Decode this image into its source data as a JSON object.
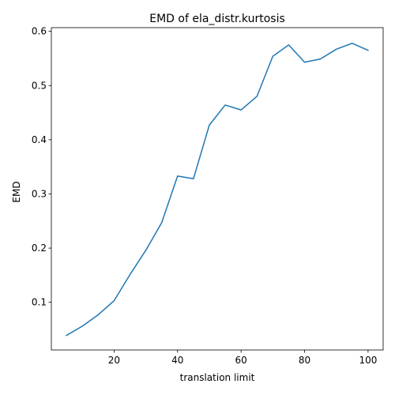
{
  "chart_data": {
    "type": "line",
    "title": "EMD of ela_distr.kurtosis",
    "xlabel": "translation limit",
    "ylabel": "EMD",
    "xlim": [
      0.25,
      104.75
    ],
    "ylim": [
      0.0121,
      0.6068
    ],
    "xticks": [
      20,
      40,
      60,
      80,
      100
    ],
    "xtick_labels": [
      "20",
      "40",
      "60",
      "80",
      "100"
    ],
    "yticks": [
      0.1,
      0.2,
      0.3,
      0.4,
      0.5,
      0.6
    ],
    "ytick_labels": [
      "0.1",
      "0.2",
      "0.3",
      "0.4",
      "0.5",
      "0.6"
    ],
    "grid": false,
    "series": [
      {
        "color": "#1f77b4",
        "x": [
          5,
          10,
          15,
          20,
          25,
          30,
          35,
          40,
          45,
          50,
          55,
          60,
          65,
          70,
          75,
          80,
          85,
          90,
          95,
          100
        ],
        "y": [
          0.039,
          0.056,
          0.077,
          0.103,
          0.151,
          0.196,
          0.247,
          0.333,
          0.328,
          0.427,
          0.464,
          0.455,
          0.48,
          0.554,
          0.575,
          0.543,
          0.549,
          0.567,
          0.578,
          0.565
        ]
      }
    ]
  }
}
